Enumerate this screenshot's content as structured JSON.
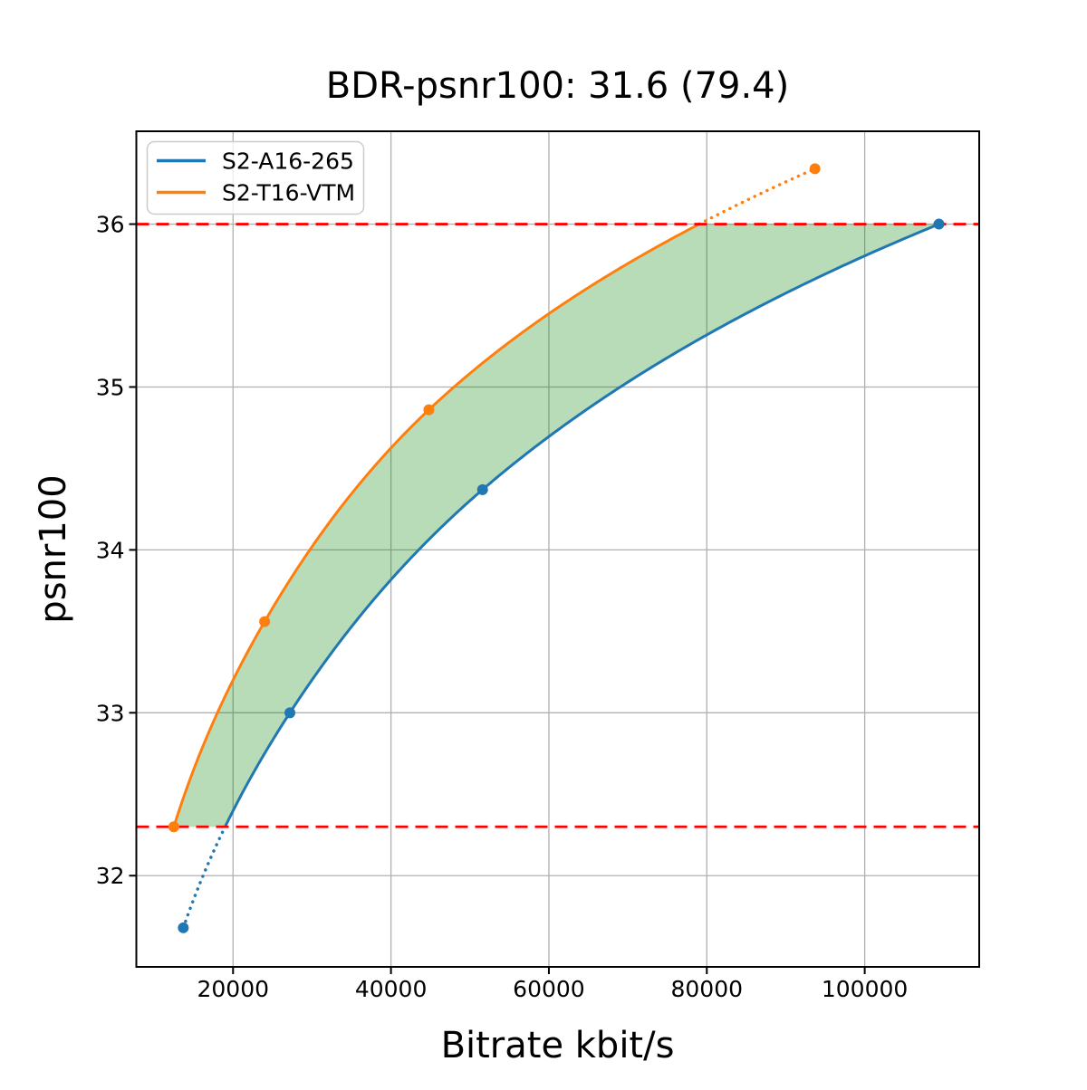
{
  "chart_data": {
    "type": "line",
    "title": "BDR-psnr100: 31.6 (79.4)",
    "xlabel": "Bitrate kbit/s",
    "ylabel": "psnr100",
    "xlim": [
      7750,
      114500
    ],
    "ylim": [
      31.44,
      36.57
    ],
    "xticks": [
      20000,
      40000,
      60000,
      80000,
      100000
    ],
    "yticks": [
      32,
      33,
      34,
      35,
      36
    ],
    "grid": true,
    "grid_color": "#b0b0b0",
    "background": "#ffffff",
    "legend_position": "upper left",
    "series": [
      {
        "name": "S2-A16-265",
        "color": "#1f77b4",
        "points": [
          [
            13700,
            31.68
          ],
          [
            27200,
            33.0
          ],
          [
            51600,
            34.37
          ],
          [
            109400,
            36.0
          ]
        ],
        "dotted_segment": "below-overlap"
      },
      {
        "name": "S2-T16-VTM",
        "color": "#ff7f0e",
        "points": [
          [
            12500,
            32.3
          ],
          [
            24000,
            33.56
          ],
          [
            44800,
            34.86
          ],
          [
            93700,
            36.34
          ]
        ],
        "dotted_segment": "above-overlap"
      }
    ],
    "overlap_interval": {
      "y_low": 32.3,
      "y_high": 36.0,
      "line_color": "#ff0000",
      "line_style": "dashed"
    },
    "shaded_region": {
      "fill_color": "rgba(0,128,0,0.28)",
      "between": [
        "S2-T16-VTM",
        "S2-A16-265"
      ],
      "clipped_to_overlap": true
    }
  }
}
